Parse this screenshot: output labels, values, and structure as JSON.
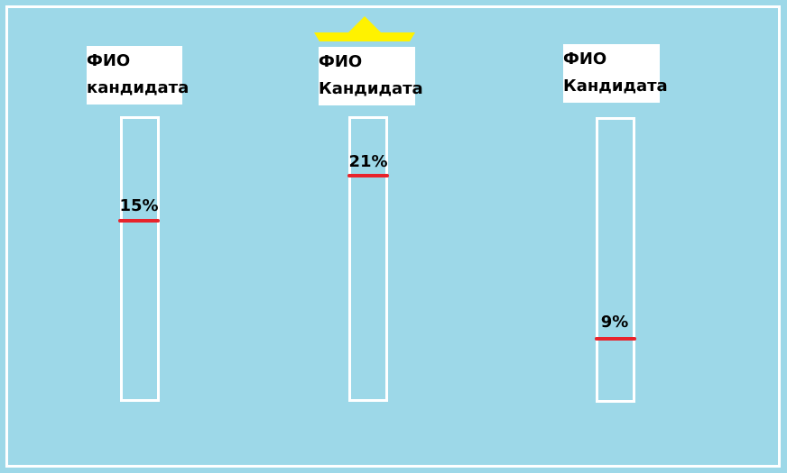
{
  "candidates": [
    {
      "name_line1": "ФИО",
      "name_line2": "кандидата",
      "percent_label": "15%",
      "percent": 15,
      "leader": false
    },
    {
      "name_line1": "ФИО",
      "name_line2": "Кандидата",
      "percent_label": "21%",
      "percent": 21,
      "leader": true
    },
    {
      "name_line1": "ФИО",
      "name_line2": "Кандидата",
      "percent_label": "9%",
      "percent": 9,
      "leader": false
    }
  ],
  "colors": {
    "background": "#9dd8e8",
    "frame": "#ffffff",
    "marker": "#e8232b",
    "crown": "#fff200"
  },
  "icons": {
    "leader_marker": "crown-icon"
  }
}
